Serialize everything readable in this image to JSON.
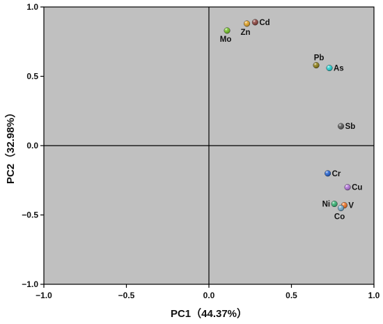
{
  "chart_data": {
    "type": "scatter",
    "title": "",
    "xlabel": "PC1（44.37%）",
    "ylabel": "PC2（32.98%）",
    "xlim": [
      -1.0,
      1.0
    ],
    "ylim": [
      -1.0,
      1.0
    ],
    "x_ticks": [
      "−1.0",
      "−0.5",
      "0.0",
      "0.5",
      "1.0"
    ],
    "y_ticks": [
      "1.0",
      "0.5",
      "0.0",
      "−0.5",
      "−1.0"
    ],
    "x_tick_values": [
      -1.0,
      -0.5,
      0.0,
      0.5,
      1.0
    ],
    "y_tick_values": [
      1.0,
      0.5,
      0.0,
      -0.5,
      -1.0
    ],
    "plot_background": "#c0c0c0",
    "grid": false,
    "zero_lines": true,
    "points": [
      {
        "label": "Mo",
        "x": 0.11,
        "y": 0.83,
        "color": "#6fbf20",
        "label_pos": "below"
      },
      {
        "label": "Zn",
        "x": 0.23,
        "y": 0.88,
        "color": "#e0a020",
        "label_pos": "below"
      },
      {
        "label": "Cd",
        "x": 0.28,
        "y": 0.89,
        "color": "#8a3f3a",
        "label_pos": "right"
      },
      {
        "label": "Pb",
        "x": 0.65,
        "y": 0.58,
        "color": "#8a7a10",
        "label_pos": "above"
      },
      {
        "label": "As",
        "x": 0.73,
        "y": 0.56,
        "color": "#20d0d0",
        "label_pos": "right"
      },
      {
        "label": "Sb",
        "x": 0.8,
        "y": 0.14,
        "color": "#555555",
        "label_pos": "right"
      },
      {
        "label": "Cr",
        "x": 0.72,
        "y": -0.2,
        "color": "#2060d0",
        "label_pos": "right"
      },
      {
        "label": "Cu",
        "x": 0.84,
        "y": -0.3,
        "color": "#b070d8",
        "label_pos": "right"
      },
      {
        "label": "Ni",
        "x": 0.76,
        "y": -0.42,
        "color": "#30b070",
        "label_pos": "left"
      },
      {
        "label": "V",
        "x": 0.82,
        "y": -0.43,
        "color": "#f07020",
        "label_pos": "right"
      },
      {
        "label": "Co",
        "x": 0.8,
        "y": -0.45,
        "color": "#70a8c8",
        "label_pos": "below"
      }
    ]
  }
}
